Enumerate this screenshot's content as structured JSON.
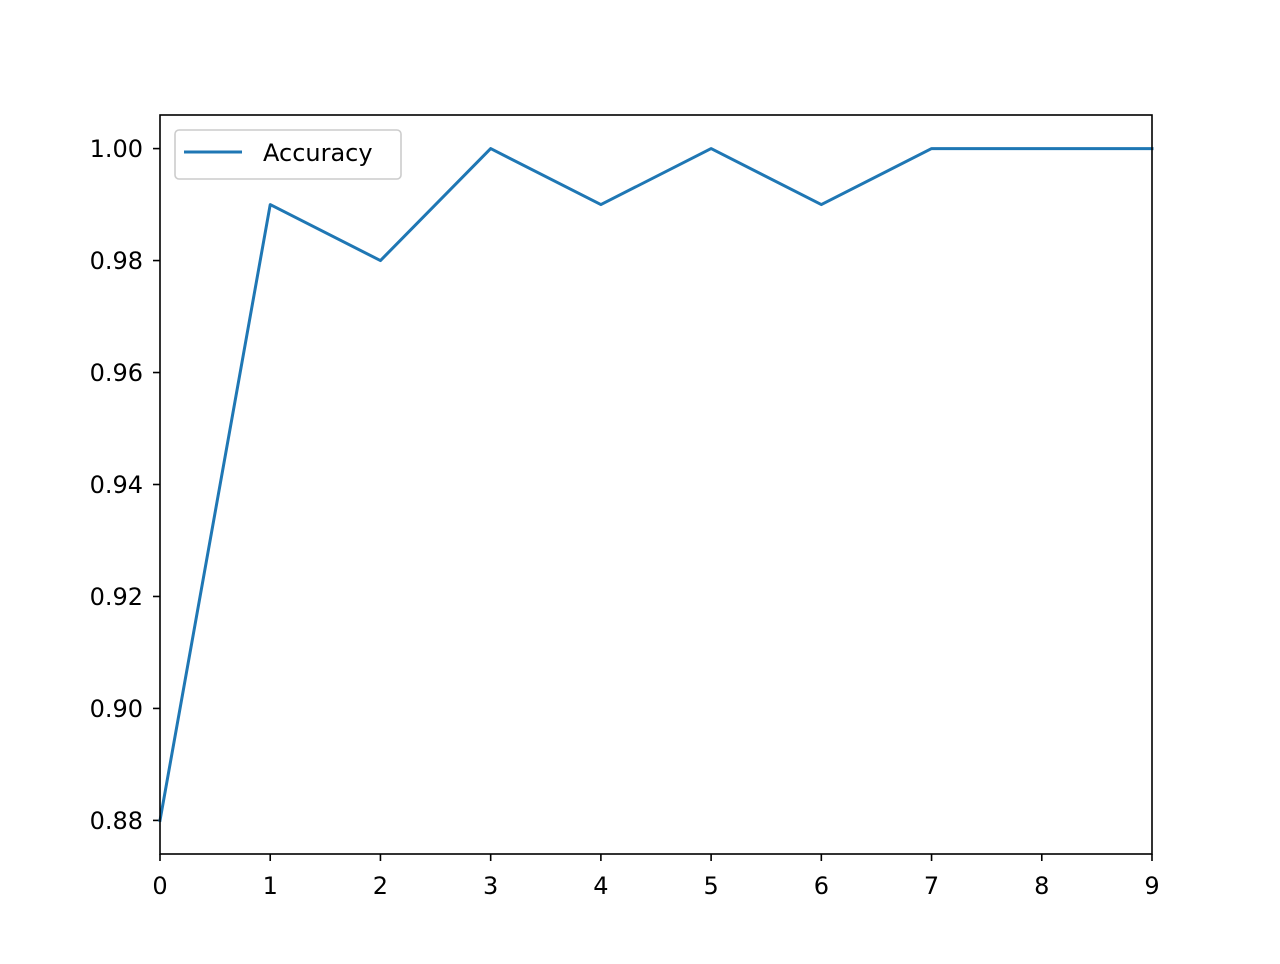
{
  "colors": {
    "background": "#ffffff",
    "line": "#1f77b4",
    "axis": "#000000",
    "legend_border": "#cccccc"
  },
  "chart_data": {
    "type": "line",
    "title": "",
    "xlabel": "",
    "ylabel": "",
    "xlim": [
      0,
      9
    ],
    "ylim": [
      0.874,
      1.006
    ],
    "grid": false,
    "legend_position": "upper left",
    "x_ticks": [
      0,
      1,
      2,
      3,
      4,
      5,
      6,
      7,
      8,
      9
    ],
    "x_tick_labels": [
      "0",
      "1",
      "2",
      "3",
      "4",
      "5",
      "6",
      "7",
      "8",
      "9"
    ],
    "y_ticks": [
      0.88,
      0.9,
      0.92,
      0.94,
      0.96,
      0.98,
      1.0
    ],
    "y_tick_labels": [
      "0.88",
      "0.90",
      "0.92",
      "0.94",
      "0.96",
      "0.98",
      "1.00"
    ],
    "series": [
      {
        "name": "Accuracy",
        "x": [
          0,
          1,
          2,
          3,
          4,
          5,
          6,
          7,
          8,
          9
        ],
        "values": [
          0.88,
          0.99,
          0.98,
          1.0,
          0.99,
          1.0,
          0.99,
          1.0,
          1.0,
          1.0
        ]
      }
    ]
  }
}
